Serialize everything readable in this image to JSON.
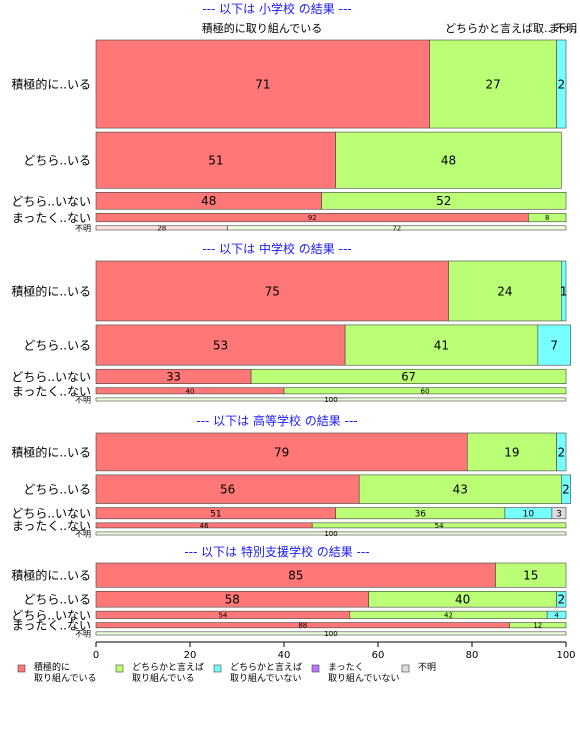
{
  "chart_data": {
    "type": "bar",
    "orientation": "horizontal",
    "stacked": true,
    "xlim": [
      0,
      100
    ],
    "x_ticks": [
      "0",
      "20",
      "40",
      "60",
      "80",
      "100"
    ],
    "top_labels": [
      "積極的に取り組んでいる",
      "どちらかと言えば取..",
      "不明",
      "まっ.."
    ],
    "legend": {
      "placement": "bottom-left",
      "items": [
        {
          "label_lines": [
            "積極的に",
            "取り組んでいる"
          ],
          "color": "#ff7777"
        },
        {
          "label_lines": [
            "どちらかと言えば",
            "取り組んでいる"
          ],
          "color": "#bbff77"
        },
        {
          "label_lines": [
            "どちらかと言えば",
            "取り組んでいない"
          ],
          "color": "#77ffff"
        },
        {
          "label_lines": [
            "まったく",
            "取り組んでいない"
          ],
          "color": "#bb77ff"
        },
        {
          "label_lines": [
            "不明"
          ],
          "color": "#dddddd"
        }
      ]
    },
    "groups": [
      {
        "title": "--- 以下は 小学校 の結果 ---",
        "rows": [
          {
            "label": "積極的に..いる",
            "weight": 83,
            "values": [
              71,
              27,
              2,
              0,
              0
            ],
            "labels": [
              "71",
              "27",
              "2",
              "",
              ""
            ]
          },
          {
            "label": "どちら..いる",
            "weight": 53,
            "values": [
              51,
              48,
              0,
              0,
              0
            ],
            "labels": [
              "51",
              "48",
              "",
              "",
              ""
            ]
          },
          {
            "label": "どちら..いない",
            "weight": 16,
            "values": [
              48,
              52,
              0,
              0,
              0
            ],
            "labels": [
              "48",
              "52",
              "",
              "",
              ""
            ]
          },
          {
            "label": "まったく..ない",
            "weight": 8,
            "values": [
              92,
              8,
              0,
              0,
              0
            ],
            "labels": [
              "92",
              "8",
              "",
              "",
              ""
            ]
          },
          {
            "label": "不明",
            "weight": 4,
            "values": [
              28,
              72,
              0,
              0,
              0
            ],
            "labels": [
              "28",
              "72",
              "",
              "",
              ""
            ],
            "faded": true
          }
        ]
      },
      {
        "title": "--- 以下は 中学校 の結果 ---",
        "rows": [
          {
            "label": "積極的に..いる",
            "weight": 58,
            "values": [
              75,
              24,
              1,
              0,
              0
            ],
            "labels": [
              "75",
              "24",
              "1",
              "",
              ""
            ]
          },
          {
            "label": "どちら..いる",
            "weight": 39,
            "values": [
              53,
              41,
              7,
              0,
              0
            ],
            "labels": [
              "53",
              "41",
              "7",
              "",
              ""
            ]
          },
          {
            "label": "どちら..いない",
            "weight": 14,
            "values": [
              33,
              67,
              0,
              0,
              0
            ],
            "labels": [
              "33",
              "67",
              "",
              "",
              ""
            ]
          },
          {
            "label": "まったく..ない",
            "weight": 6,
            "values": [
              40,
              60,
              0,
              0,
              0
            ],
            "labels": [
              "40",
              "60",
              "",
              "",
              ""
            ]
          },
          {
            "label": "不明",
            "weight": 3,
            "values": [
              0,
              100,
              0,
              0,
              0
            ],
            "labels": [
              "",
              "100",
              "",
              "",
              ""
            ],
            "faded": true
          }
        ]
      },
      {
        "title": "--- 以下は 高等学校 の結果 ---",
        "rows": [
          {
            "label": "積極的に..いる",
            "weight": 37,
            "values": [
              79,
              19,
              2,
              0,
              0
            ],
            "labels": [
              "79",
              "19",
              "2",
              "",
              ""
            ]
          },
          {
            "label": "どちら..いる",
            "weight": 28,
            "values": [
              56,
              43,
              2,
              0,
              0
            ],
            "labels": [
              "56",
              "43",
              "2",
              "",
              ""
            ]
          },
          {
            "label": "どちら..いない",
            "weight": 11,
            "values": [
              51,
              36,
              10,
              0,
              3
            ],
            "labels": [
              "51",
              "36",
              "10",
              "",
              "3"
            ]
          },
          {
            "label": "まったく..ない",
            "weight": 5,
            "values": [
              46,
              54,
              0,
              0,
              0
            ],
            "labels": [
              "46",
              "54",
              "",
              "",
              ""
            ]
          },
          {
            "label": "不明",
            "weight": 3,
            "values": [
              0,
              100,
              0,
              0,
              0
            ],
            "labels": [
              "",
              "100",
              "",
              "",
              ""
            ],
            "faded": true
          }
        ]
      },
      {
        "title": "--- 以下は 特別支援学校 の結果 ---",
        "rows": [
          {
            "label": "積極的に..いる",
            "weight": 23,
            "values": [
              85,
              15,
              0,
              0,
              0
            ],
            "labels": [
              "85",
              "15",
              "",
              "",
              ""
            ]
          },
          {
            "label": "どちら..いる",
            "weight": 15,
            "values": [
              58,
              40,
              2,
              0,
              0
            ],
            "labels": [
              "58",
              "40",
              "2",
              "",
              ""
            ]
          },
          {
            "label": "どちら..いない",
            "weight": 7,
            "values": [
              54,
              42,
              4,
              0,
              0
            ],
            "labels": [
              "54",
              "42",
              "4",
              "",
              ""
            ]
          },
          {
            "label": "まったく..ない",
            "weight": 5,
            "values": [
              88,
              12,
              0,
              0,
              0
            ],
            "labels": [
              "88",
              "12",
              "",
              "",
              ""
            ]
          },
          {
            "label": "不明",
            "weight": 3,
            "values": [
              0,
              100,
              0,
              0,
              0
            ],
            "labels": [
              "",
              "100",
              "",
              "",
              ""
            ],
            "faded": true
          }
        ]
      }
    ]
  }
}
